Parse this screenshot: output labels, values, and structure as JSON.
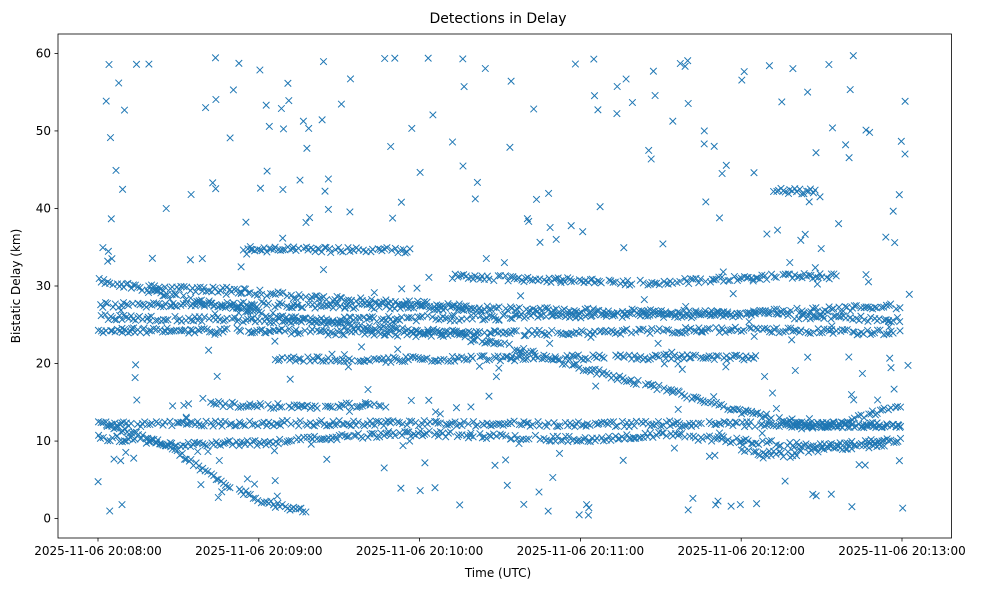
{
  "chart_data": {
    "type": "scatter",
    "title": "Detections in Delay",
    "xlabel": "Time (UTC)",
    "ylabel": "Bistatic Delay (km)",
    "marker": "x",
    "color": "#1f77b4",
    "grid": false,
    "xlim": [
      -0.06,
      5.3
    ],
    "ylim": [
      -2.5,
      62.5
    ],
    "x_unit": "minutes after 2025-11-06 20:08:00",
    "xticks": [
      {
        "value": 0,
        "label": "2025-11-06 20:08:00"
      },
      {
        "value": 1,
        "label": "2025-11-06 20:09:00"
      },
      {
        "value": 2,
        "label": "2025-11-06 20:10:00"
      },
      {
        "value": 3,
        "label": "2025-11-06 20:11:00"
      },
      {
        "value": 4,
        "label": "2025-11-06 20:12:00"
      },
      {
        "value": 5,
        "label": "2025-11-06 20:13:00"
      }
    ],
    "yticks": [
      {
        "value": 0,
        "label": "0"
      },
      {
        "value": 10,
        "label": "10"
      },
      {
        "value": 20,
        "label": "20"
      },
      {
        "value": 30,
        "label": "30"
      },
      {
        "value": 40,
        "label": "40"
      },
      {
        "value": 50,
        "label": "50"
      },
      {
        "value": 60,
        "label": "60"
      }
    ],
    "tracks": [
      {
        "name": "track-descending-to-zero",
        "points": [
          [
            0.05,
            12.0
          ],
          [
            0.3,
            10.5
          ],
          [
            0.5,
            8.5
          ],
          [
            0.75,
            5.0
          ],
          [
            1.0,
            2.4
          ],
          [
            1.2,
            1.2
          ],
          [
            1.3,
            1.0
          ]
        ]
      },
      {
        "name": "track-long-descending",
        "points": [
          [
            0.0,
            30.8
          ],
          [
            0.3,
            29.5
          ],
          [
            0.7,
            27.8
          ],
          [
            1.2,
            25.8
          ],
          [
            1.7,
            24.5
          ],
          [
            2.2,
            24.0
          ],
          [
            2.6,
            22.0
          ],
          [
            3.0,
            19.5
          ],
          [
            3.5,
            16.8
          ],
          [
            4.0,
            13.8
          ],
          [
            4.4,
            12.2
          ],
          [
            4.8,
            12.0
          ],
          [
            5.0,
            12.2
          ]
        ]
      },
      {
        "name": "track-rising-to-15",
        "points": [
          [
            4.3,
            11.8
          ],
          [
            4.6,
            12.2
          ],
          [
            4.8,
            13.5
          ],
          [
            5.0,
            14.5
          ]
        ]
      },
      {
        "name": "track-band-27",
        "points": [
          [
            0.0,
            27.5
          ],
          [
            1.0,
            27.6
          ],
          [
            2.0,
            27.3
          ],
          [
            3.0,
            26.8
          ],
          [
            4.0,
            26.5
          ],
          [
            5.0,
            27.4
          ]
        ]
      },
      {
        "name": "track-band-26",
        "points": [
          [
            0.0,
            26.0
          ],
          [
            1.0,
            25.5
          ],
          [
            2.0,
            25.8
          ],
          [
            3.0,
            26.2
          ],
          [
            4.0,
            26.3
          ],
          [
            5.0,
            25.6
          ]
        ]
      },
      {
        "name": "track-band-24",
        "points": [
          [
            0.0,
            24.3
          ],
          [
            1.0,
            24.2
          ],
          [
            2.0,
            23.8
          ],
          [
            3.0,
            24.0
          ],
          [
            4.0,
            24.4
          ],
          [
            5.0,
            23.9
          ]
        ]
      },
      {
        "name": "track-band-29",
        "points": [
          [
            0.3,
            29.8
          ],
          [
            0.8,
            29.5
          ],
          [
            1.3,
            28.6
          ],
          [
            1.8,
            27.9
          ],
          [
            2.3,
            27.4
          ]
        ]
      },
      {
        "name": "track-band-12",
        "points": [
          [
            0.0,
            12.2
          ],
          [
            1.0,
            12.3
          ],
          [
            2.0,
            12.3
          ],
          [
            3.0,
            12.2
          ],
          [
            4.0,
            12.2
          ],
          [
            5.0,
            12.0
          ]
        ]
      },
      {
        "name": "track-band-10",
        "points": [
          [
            0.0,
            10.5
          ],
          [
            0.5,
            9.6
          ],
          [
            1.0,
            9.8
          ],
          [
            1.5,
            10.5
          ],
          [
            2.0,
            11.0
          ],
          [
            3.0,
            10.2
          ],
          [
            3.5,
            10.8
          ],
          [
            4.0,
            10.0
          ],
          [
            4.5,
            9.3
          ],
          [
            5.0,
            10.2
          ]
        ]
      },
      {
        "name": "track-band-14",
        "points": [
          [
            0.7,
            14.8
          ],
          [
            1.0,
            14.5
          ],
          [
            1.5,
            14.6
          ],
          [
            1.8,
            14.7
          ]
        ]
      },
      {
        "name": "track-band-9",
        "points": [
          [
            4.0,
            8.6
          ],
          [
            4.3,
            8.3
          ],
          [
            4.6,
            9.2
          ],
          [
            4.9,
            9.6
          ]
        ]
      },
      {
        "name": "track-band-21",
        "points": [
          [
            1.1,
            20.7
          ],
          [
            1.4,
            20.6
          ],
          [
            1.7,
            20.4
          ],
          [
            2.0,
            20.6
          ],
          [
            3.2,
            20.8
          ],
          [
            3.8,
            20.8
          ],
          [
            4.1,
            20.7
          ]
        ]
      },
      {
        "name": "track-band-35",
        "points": [
          [
            0.9,
            34.7
          ],
          [
            1.25,
            34.7
          ],
          [
            1.65,
            34.6
          ],
          [
            1.95,
            34.6
          ]
        ]
      },
      {
        "name": "track-band-31",
        "points": [
          [
            2.2,
            31.2
          ],
          [
            3.4,
            30.4
          ],
          [
            4.3,
            31.3
          ],
          [
            4.6,
            31.2
          ]
        ]
      },
      {
        "name": "track-band-42",
        "points": [
          [
            4.2,
            42.3
          ],
          [
            4.5,
            42.2
          ]
        ]
      }
    ]
  }
}
